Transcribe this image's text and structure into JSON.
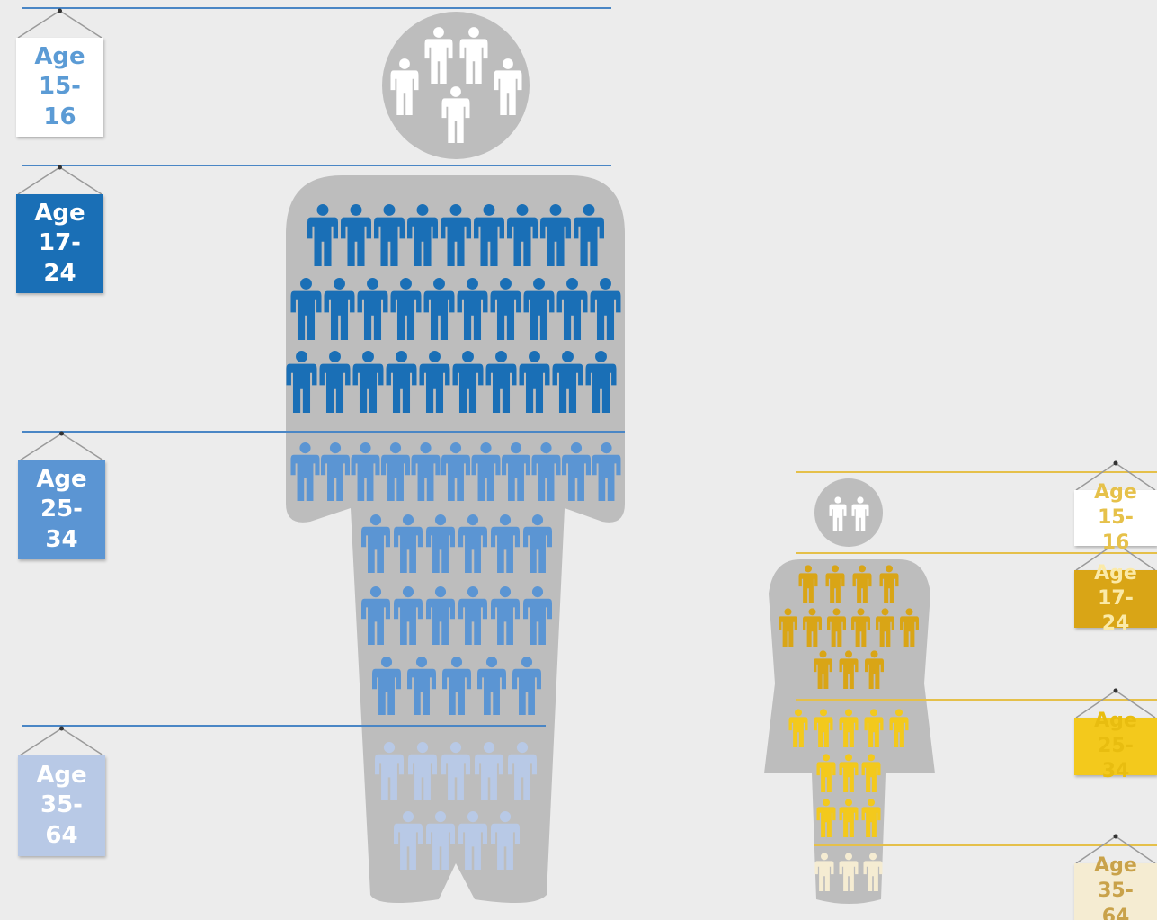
{
  "chart_data": [
    {
      "type": "pictogram",
      "categories": [
        "Age 15-16",
        "Age 17-24",
        "Age 25-34",
        "Age 35-64"
      ],
      "values": [
        5,
        29,
        28,
        9
      ],
      "colors": [
        "#ffffff",
        "#1a6fb6",
        "#5b95d3",
        "#b8c9e6"
      ]
    },
    {
      "type": "pictogram",
      "categories": [
        "Age 15-16",
        "Age 17-24",
        "Age 25-34",
        "Age 35-64"
      ],
      "values": [
        2,
        13,
        11,
        3
      ],
      "colors": [
        "#ffffff",
        "#d9a516",
        "#f3c91c",
        "#f5ecd2"
      ]
    }
  ]
}
